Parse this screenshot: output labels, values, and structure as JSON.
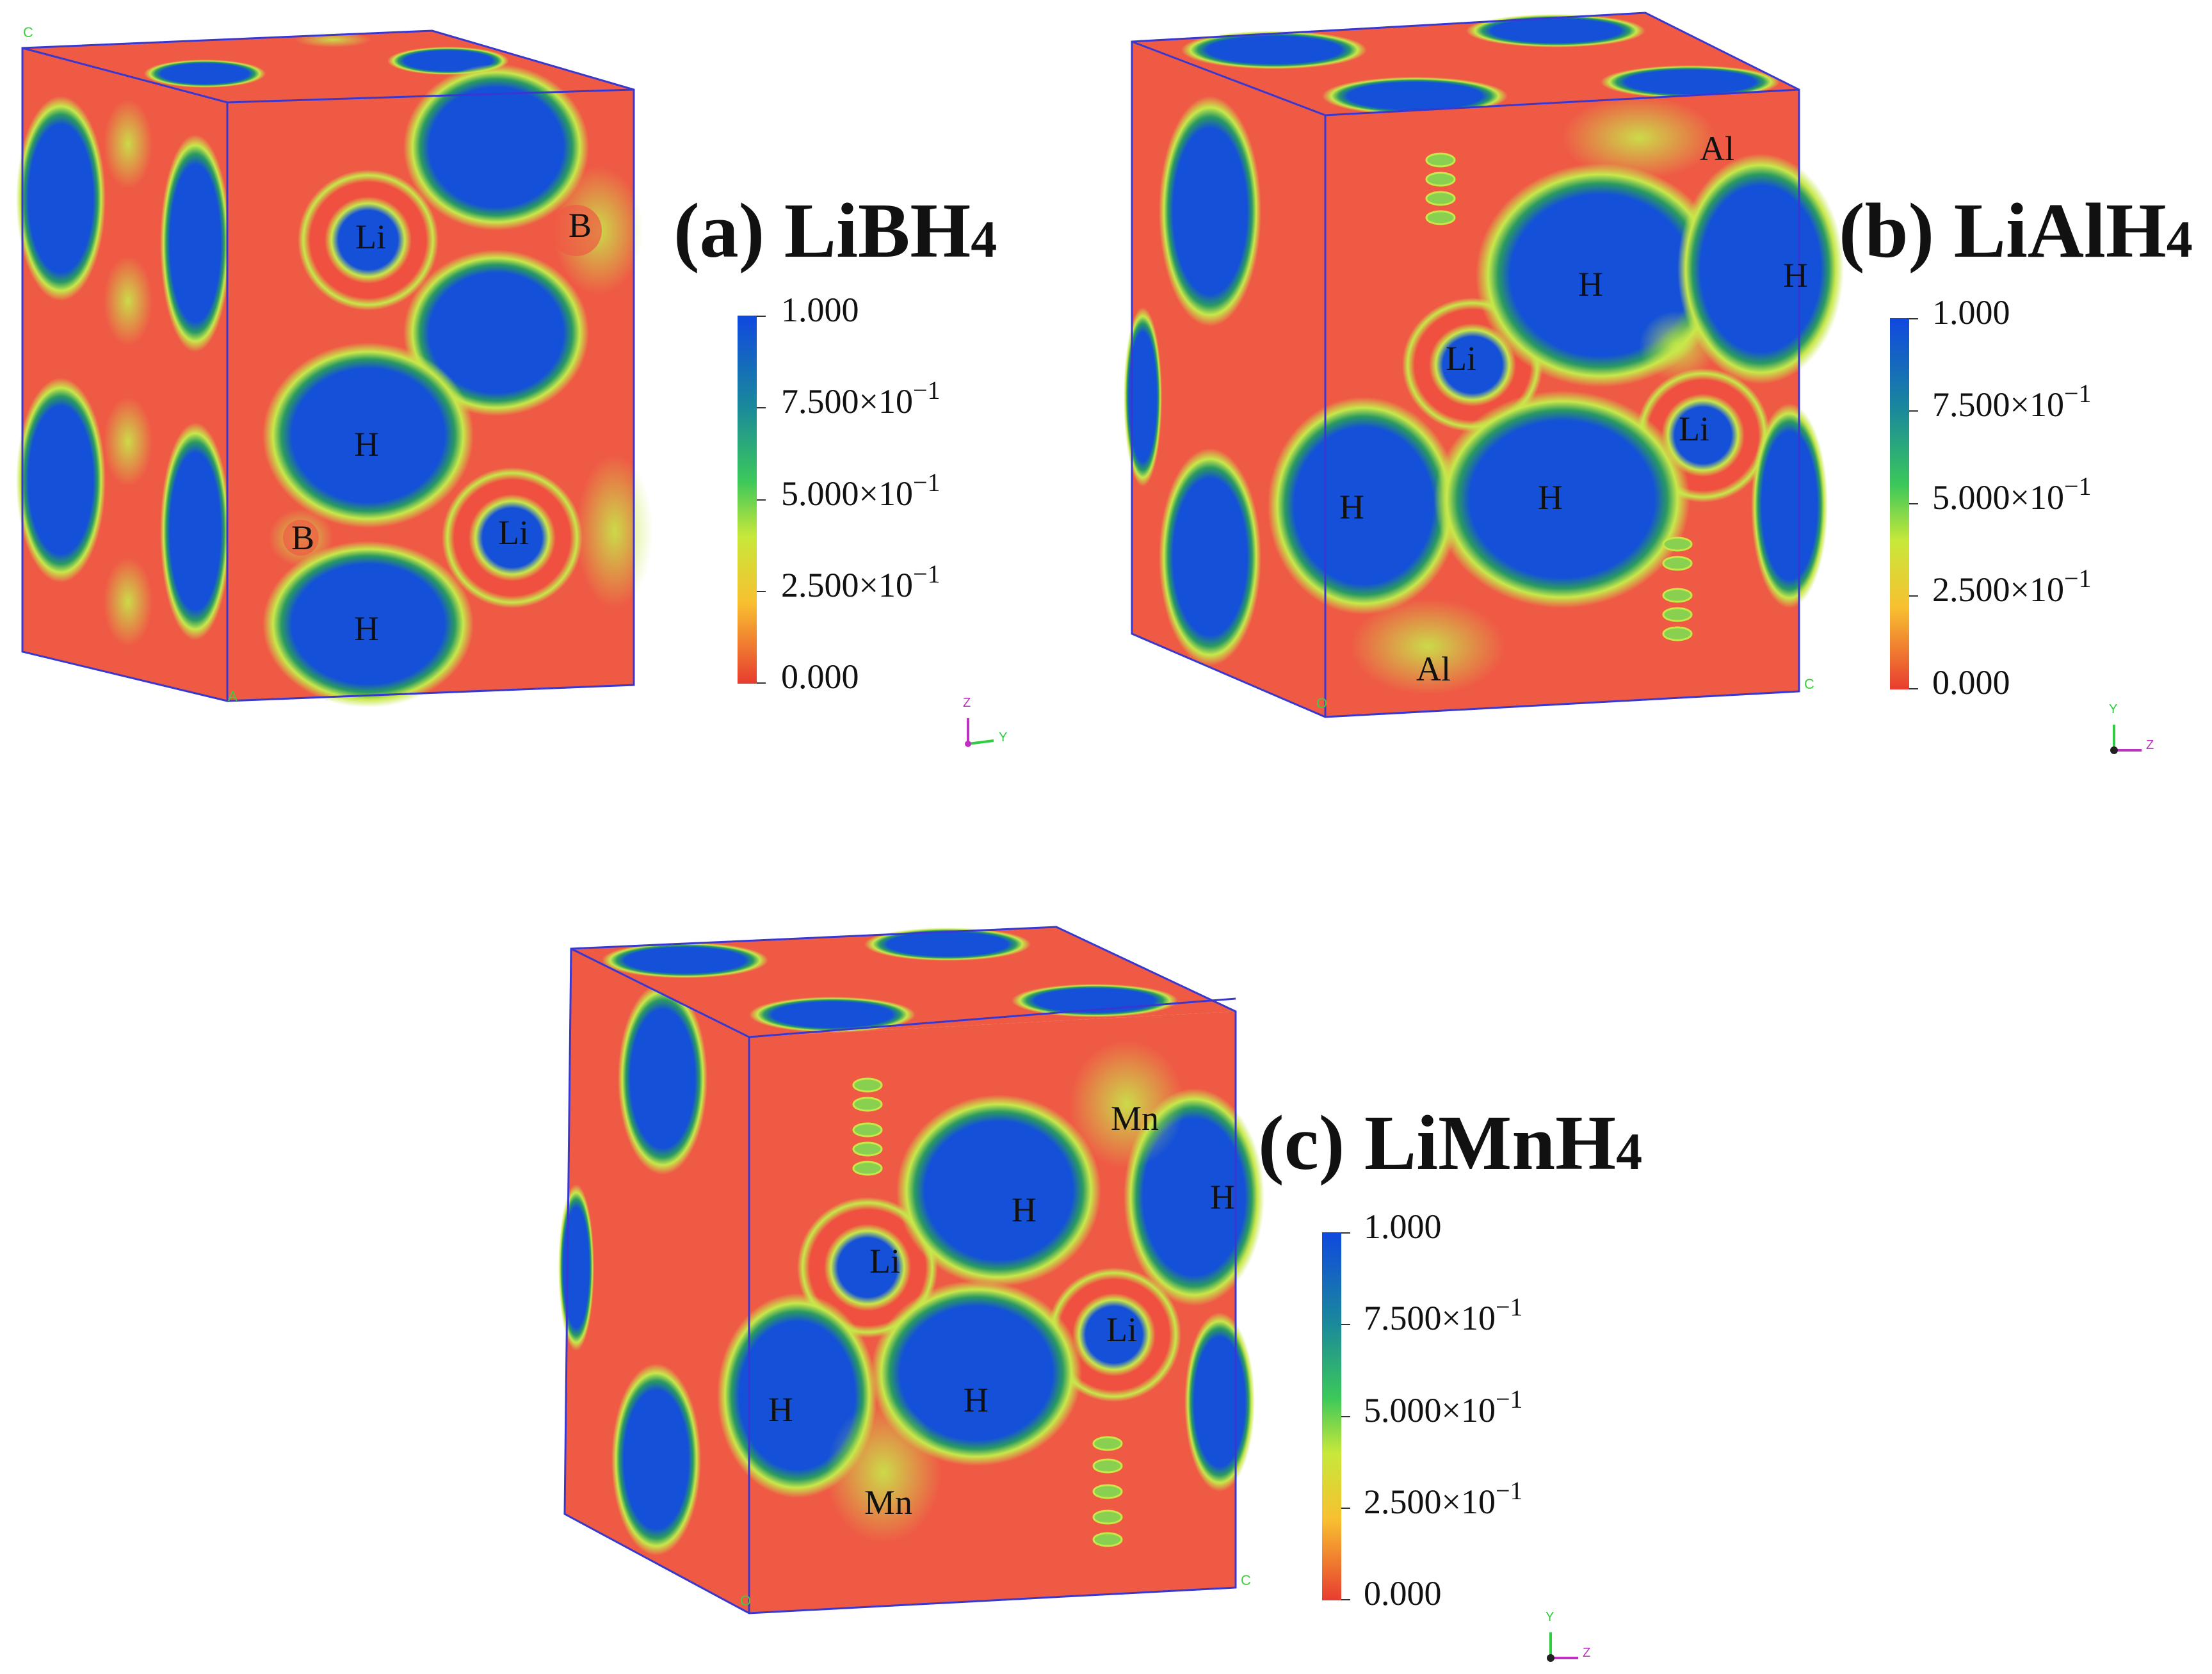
{
  "panels": [
    {
      "title_prefix": "(a) LiBH",
      "title_sub": "4",
      "corner_labels": [
        "C",
        "A"
      ],
      "atoms": [
        "Li",
        "B",
        "H",
        "B",
        "Li",
        "H"
      ],
      "colorbar": {
        "ticks": [
          "1.000",
          "7.500×10",
          "5.000×10",
          "2.500×10",
          "0.000"
        ],
        "exp": "−1"
      },
      "axes": [
        "Z",
        "Y"
      ]
    },
    {
      "title_prefix": "(b) LiAlH",
      "title_sub": "4",
      "corner_labels": [
        "O",
        "C"
      ],
      "atoms": [
        "Al",
        "H",
        "H",
        "Li",
        "Li",
        "H",
        "H",
        "Al"
      ],
      "colorbar": {
        "ticks": [
          "1.000",
          "7.500×10",
          "5.000×10",
          "2.500×10",
          "0.000"
        ],
        "exp": "−1"
      },
      "axes": [
        "Y",
        "Z"
      ]
    },
    {
      "title_prefix": "(c) LiMnH",
      "title_sub": "4",
      "corner_labels": [
        "O",
        "C"
      ],
      "atoms": [
        "Mn",
        "H",
        "H",
        "Li",
        "Li",
        "H",
        "H",
        "Mn"
      ],
      "colorbar": {
        "ticks": [
          "1.000",
          "7.500×10",
          "5.000×10",
          "2.500×10",
          "0.000"
        ],
        "exp": "−1"
      },
      "axes": [
        "Y",
        "Z"
      ]
    }
  ],
  "colors": {
    "low": "#ef5040",
    "mid": "#c8e84a",
    "high": "#1450d8",
    "edge": "#3838d0"
  }
}
